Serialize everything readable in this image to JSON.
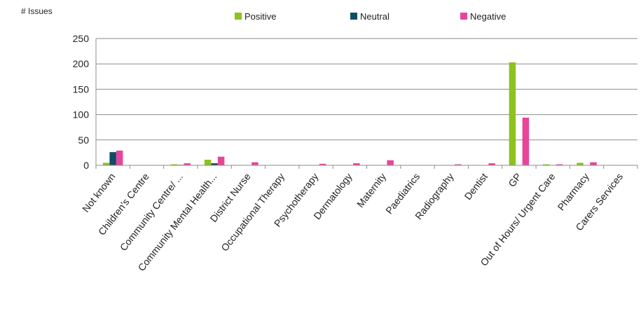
{
  "chart_data": {
    "type": "bar",
    "title": "",
    "xlabel": "",
    "ylabel": "# Issues",
    "ylim": [
      0,
      250
    ],
    "yticks": [
      0,
      50,
      100,
      150,
      200,
      250
    ],
    "grid": true,
    "legend_position": "top",
    "categories": [
      "Not known",
      "Children's Centre",
      "Community Centre/ ...",
      "Community Mental Health...",
      "District Nurse",
      "Occupational Therapy",
      "Psychotherapy",
      "Dermatology",
      "Maternity",
      "Paediatrics",
      "Radiography",
      "Dentist",
      "GP",
      "Out of Hours/ Urgent Care",
      "Pharmacy",
      "Carers Services"
    ],
    "series": [
      {
        "name": "Positive",
        "color": "#8DC21F",
        "values": [
          5,
          0,
          2,
          11,
          0,
          0,
          0,
          0,
          0,
          0,
          0,
          0,
          203,
          2,
          5,
          0
        ]
      },
      {
        "name": "Neutral",
        "color": "#0E4D64",
        "values": [
          26,
          0,
          1,
          4,
          0,
          0,
          0,
          0,
          0,
          0,
          0,
          0,
          0,
          0,
          0,
          0
        ]
      },
      {
        "name": "Negative",
        "color": "#E8459A",
        "values": [
          29,
          0,
          4,
          17,
          6,
          0,
          3,
          4,
          10,
          0,
          2,
          4,
          94,
          2,
          6,
          0
        ]
      }
    ]
  }
}
